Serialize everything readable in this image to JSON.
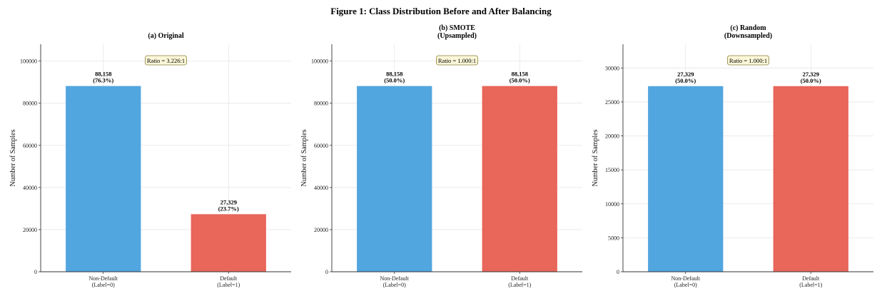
{
  "figure_title": "Figure 1: Class Distribution Before and After Balancing",
  "colors": {
    "non_default": "#52a6df",
    "default": "#e8665a",
    "ratio_box_fill": "#fbf7d8",
    "ratio_box_stroke": "#8a7f3a"
  },
  "chart_data": [
    {
      "type": "bar",
      "title": "(a) Original",
      "ylabel": "Number of Samples",
      "xlabel": "",
      "categories": [
        "Non-Default\n(Label=0)",
        "Default\n(Label=1)"
      ],
      "values": [
        88158,
        27329
      ],
      "bar_labels": [
        "88,158\n(76.3%)",
        "27,329\n(23.7%)"
      ],
      "ylim": [
        0,
        108000
      ],
      "yticks": [
        0,
        20000,
        40000,
        60000,
        80000,
        100000
      ],
      "annotation": "Ratio = 3.226:1",
      "grid": true
    },
    {
      "type": "bar",
      "title": "(b) SMOTE\n(Upsampled)",
      "ylabel": "Number of Samples",
      "xlabel": "",
      "categories": [
        "Non-Default\n(Label=0)",
        "Default\n(Label=1)"
      ],
      "values": [
        88158,
        88158
      ],
      "bar_labels": [
        "88,158\n(50.0%)",
        "88,158\n(50.0%)"
      ],
      "ylim": [
        0,
        108000
      ],
      "yticks": [
        0,
        20000,
        40000,
        60000,
        80000,
        100000
      ],
      "annotation": "Ratio = 1.000:1",
      "grid": true
    },
    {
      "type": "bar",
      "title": "(c) Random\n(Downsampled)",
      "ylabel": "Number of Samples",
      "xlabel": "",
      "categories": [
        "Non-Default\n(Label=0)",
        "Default\n(Label=1)"
      ],
      "values": [
        27329,
        27329
      ],
      "bar_labels": [
        "27,329\n(50.0%)",
        "27,329\n(50.0%)"
      ],
      "ylim": [
        0,
        33500
      ],
      "yticks": [
        0,
        5000,
        10000,
        15000,
        20000,
        25000,
        30000
      ],
      "annotation": "Ratio = 1.000:1",
      "grid": true
    }
  ]
}
